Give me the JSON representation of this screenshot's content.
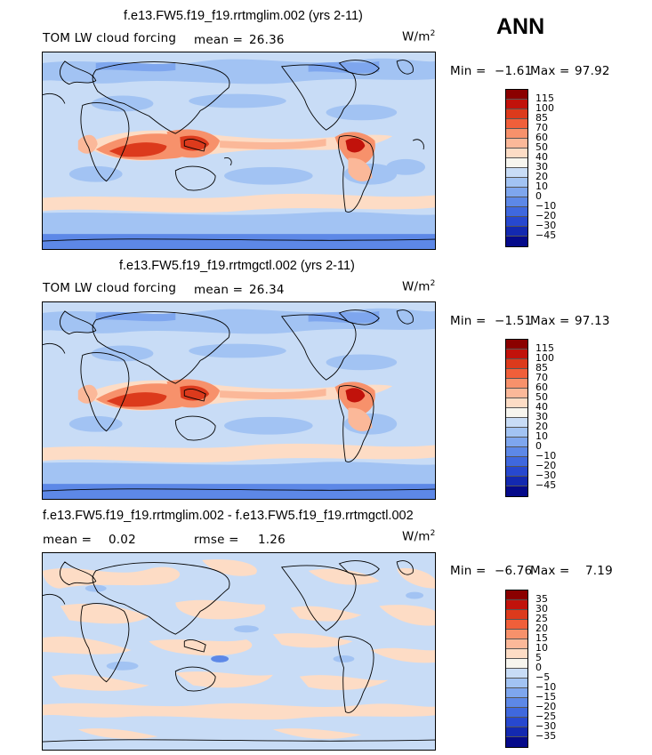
{
  "season": "ANN",
  "units": {
    "base": "W/m",
    "exp": "2"
  },
  "palette_abs": [
    "#8b0000",
    "#c1120b",
    "#dc3a1c",
    "#f05f3a",
    "#f7916b",
    "#fbb899",
    "#fddcc5",
    "#f7f5ee",
    "#c8dcf6",
    "#a2c3f3",
    "#7ea6ee",
    "#5d88e7",
    "#3f68de",
    "#2748cf",
    "#1329b0",
    "#050a8a"
  ],
  "panels": [
    {
      "title": "f.e13.FW5.f19_f19.rrtmglim.002 (yrs 2-11)",
      "field": "TOM LW cloud forcing",
      "stat1": {
        "label": "mean =",
        "value": "26.36"
      },
      "stat2": null,
      "min_label": "Min =",
      "min": "−1.61",
      "max_label": "Max =",
      "max": "97.92",
      "ticks": [
        "115",
        "100",
        "85",
        "70",
        "60",
        "50",
        "40",
        "30",
        "20",
        "10",
        "0",
        "−10",
        "−20",
        "−30",
        "−45"
      ]
    },
    {
      "title": "f.e13.FW5.f19_f19.rrtmgctl.002 (yrs 2-11)",
      "field": "TOM LW cloud forcing",
      "stat1": {
        "label": "mean =",
        "value": "26.34"
      },
      "stat2": null,
      "min_label": "Min =",
      "min": "−1.51",
      "max_label": "Max =",
      "max": "97.13",
      "ticks": [
        "115",
        "100",
        "85",
        "70",
        "60",
        "50",
        "40",
        "30",
        "20",
        "10",
        "0",
        "−10",
        "−20",
        "−30",
        "−45"
      ]
    },
    {
      "title": "f.e13.FW5.f19_f19.rrtmglim.002 - f.e13.FW5.f19_f19.rrtmgctl.002",
      "field": "",
      "stat1": {
        "label": "mean =",
        "value": "0.02"
      },
      "stat2": {
        "label": "rmse =",
        "value": "1.26"
      },
      "min_label": "Min =",
      "min": "−6.76",
      "max_label": "Max =",
      "max": "7.19",
      "ticks": [
        "35",
        "30",
        "25",
        "20",
        "15",
        "10",
        "5",
        "0",
        "−5",
        "−10",
        "−15",
        "−20",
        "−25",
        "−30",
        "−35"
      ]
    }
  ]
}
